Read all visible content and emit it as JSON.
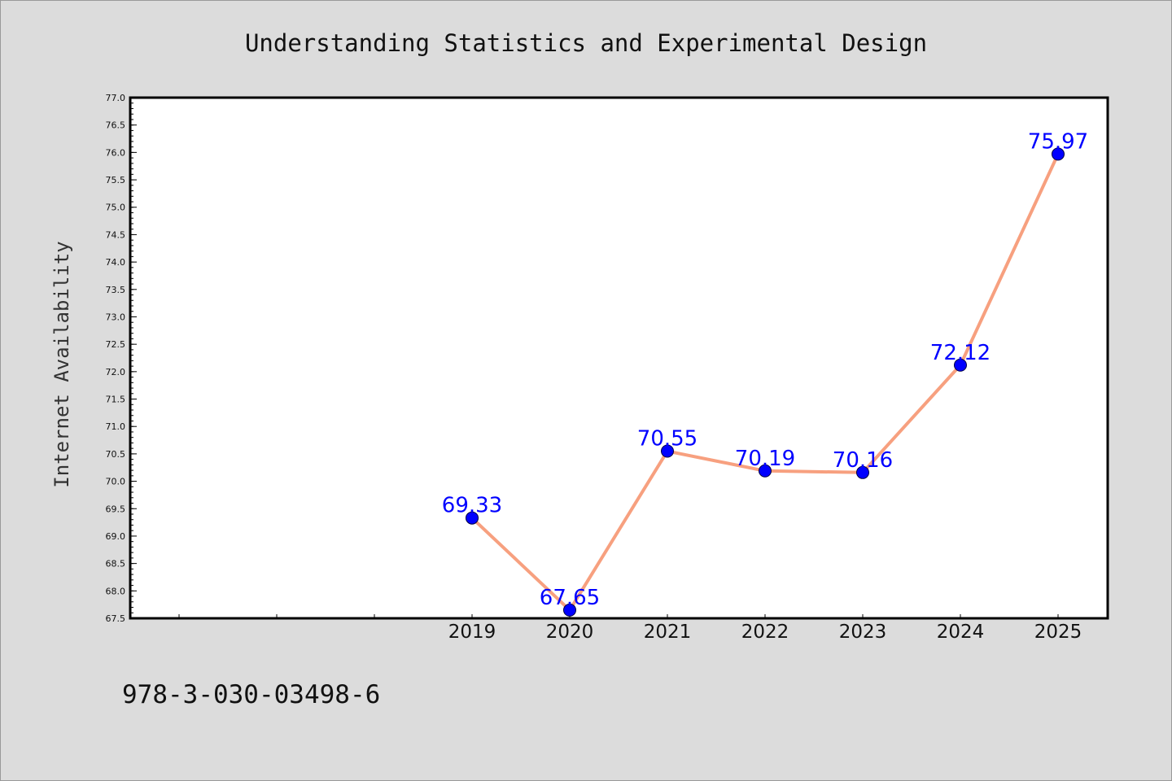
{
  "chart_data": {
    "type": "line",
    "title": "Understanding Statistics and Experimental Design",
    "xlabel": "",
    "ylabel": "Internet Availability",
    "categories": [
      "2019",
      "2020",
      "2021",
      "2022",
      "2023",
      "2024",
      "2025"
    ],
    "series": [
      {
        "values": [
          69.33,
          67.65,
          70.55,
          70.19,
          70.16,
          72.12,
          75.97
        ],
        "labels": [
          "69.33",
          "67.65",
          "70.55",
          "70.19",
          "70.16",
          "72.12",
          "75.97"
        ],
        "line_color": "#f7a07f",
        "marker_color": "#0000ff"
      }
    ],
    "ylim": [
      67.5,
      77.0
    ],
    "yticks": [
      "67.5",
      "68.0",
      "68.5",
      "69.0",
      "69.5",
      "70.0",
      "70.5",
      "71.0",
      "71.5",
      "72.0",
      "72.5",
      "73.0",
      "73.5",
      "74.0",
      "74.5",
      "75.0",
      "75.5",
      "76.0",
      "76.5",
      "77.0"
    ],
    "grid": false,
    "label_color": "#0000ff",
    "background_color": "#dcdcdc",
    "plot_background_color": "#ffffff"
  },
  "footer": {
    "isbn": "978-3-030-03498-6"
  }
}
